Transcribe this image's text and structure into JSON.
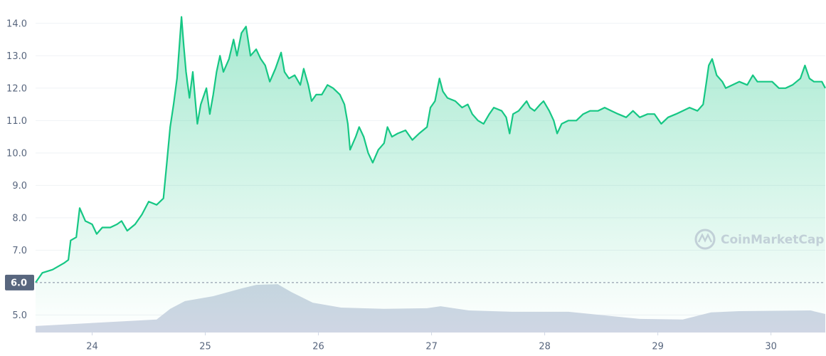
{
  "chart_data": {
    "type": "line",
    "color": "#16c784",
    "x": [
      23.5,
      23.56,
      23.65,
      23.75,
      23.79,
      23.81,
      23.86,
      23.89,
      23.94,
      24.0,
      24.04,
      24.09,
      24.16,
      24.22,
      24.26,
      24.31,
      24.38,
      24.44,
      24.5,
      24.57,
      24.63,
      24.66,
      24.69,
      24.72,
      24.75,
      24.79,
      24.81,
      24.83,
      24.86,
      24.89,
      24.93,
      24.96,
      25.01,
      25.04,
      25.07,
      25.1,
      25.13,
      25.16,
      25.21,
      25.25,
      25.28,
      25.32,
      25.36,
      25.4,
      25.45,
      25.49,
      25.53,
      25.57,
      25.62,
      25.67,
      25.7,
      25.74,
      25.79,
      25.84,
      25.87,
      25.91,
      25.94,
      25.98,
      26.03,
      26.08,
      26.13,
      26.19,
      26.23,
      26.26,
      26.28,
      26.33,
      26.36,
      26.4,
      26.44,
      26.48,
      26.53,
      26.58,
      26.61,
      26.65,
      26.7,
      26.77,
      26.83,
      26.89,
      26.96,
      26.99,
      27.03,
      27.07,
      27.1,
      27.14,
      27.21,
      27.27,
      27.32,
      27.36,
      27.41,
      27.46,
      27.51,
      27.55,
      27.62,
      27.66,
      27.69,
      27.72,
      27.77,
      27.84,
      27.87,
      27.91,
      27.96,
      27.99,
      28.04,
      28.08,
      28.11,
      28.15,
      28.21,
      28.28,
      28.34,
      28.4,
      28.47,
      28.53,
      28.59,
      28.65,
      28.72,
      28.78,
      28.84,
      28.91,
      28.97,
      29.03,
      29.09,
      29.16,
      29.22,
      29.28,
      29.35,
      29.4,
      29.43,
      29.45,
      29.48,
      29.52,
      29.57,
      29.6,
      29.66,
      29.72,
      29.79,
      29.84,
      29.88,
      29.94,
      30.01,
      30.07,
      30.13,
      30.19,
      30.26,
      30.3,
      30.34,
      30.38,
      30.45,
      30.48
    ],
    "values": [
      6.0,
      6.3,
      6.4,
      6.6,
      6.7,
      7.3,
      7.4,
      8.3,
      7.9,
      7.8,
      7.5,
      7.7,
      7.7,
      7.8,
      7.9,
      7.6,
      7.8,
      8.1,
      8.5,
      8.4,
      8.6,
      9.7,
      10.8,
      11.5,
      12.3,
      14.2,
      13.3,
      12.5,
      11.7,
      12.5,
      10.9,
      11.5,
      12.0,
      11.2,
      11.8,
      12.5,
      13.0,
      12.5,
      12.9,
      13.5,
      13.0,
      13.7,
      13.9,
      13.0,
      13.2,
      12.9,
      12.7,
      12.2,
      12.6,
      13.1,
      12.5,
      12.3,
      12.4,
      12.1,
      12.6,
      12.1,
      11.6,
      11.8,
      11.8,
      12.1,
      12.0,
      11.8,
      11.5,
      10.9,
      10.1,
      10.5,
      10.8,
      10.5,
      10.0,
      9.7,
      10.1,
      10.3,
      10.8,
      10.5,
      10.6,
      10.7,
      10.4,
      10.6,
      10.8,
      11.4,
      11.6,
      12.3,
      11.9,
      11.7,
      11.6,
      11.4,
      11.5,
      11.2,
      11.0,
      10.9,
      11.2,
      11.4,
      11.3,
      11.1,
      10.6,
      11.2,
      11.3,
      11.6,
      11.4,
      11.3,
      11.5,
      11.6,
      11.3,
      11.0,
      10.6,
      10.9,
      11.0,
      11.0,
      11.2,
      11.3,
      11.3,
      11.4,
      11.3,
      11.2,
      11.1,
      11.3,
      11.1,
      11.2,
      11.2,
      10.9,
      11.1,
      11.2,
      11.3,
      11.4,
      11.3,
      11.5,
      12.2,
      12.7,
      12.9,
      12.4,
      12.2,
      12.0,
      12.1,
      12.2,
      12.1,
      12.4,
      12.2,
      12.2,
      12.2,
      12.0,
      12.0,
      12.1,
      12.3,
      12.7,
      12.3,
      12.2,
      12.2,
      12.0
    ],
    "volume": {
      "color": "#cfd6e4",
      "x": [
        23.5,
        24.57,
        24.69,
        24.82,
        25.07,
        25.32,
        25.45,
        25.64,
        25.76,
        25.95,
        26.2,
        26.58,
        26.96,
        27.08,
        27.33,
        27.71,
        28.21,
        28.84,
        29.22,
        29.47,
        29.72,
        30.35,
        30.48
      ],
      "values": [
        4.66,
        4.86,
        5.19,
        5.43,
        5.58,
        5.82,
        5.93,
        5.95,
        5.71,
        5.38,
        5.23,
        5.19,
        5.21,
        5.27,
        5.14,
        5.1,
        5.1,
        4.88,
        4.86,
        5.08,
        5.12,
        5.14,
        5.03
      ]
    },
    "xlim": [
      23.5,
      30.48
    ],
    "xticks": [
      24,
      25,
      26,
      27,
      28,
      29,
      30
    ],
    "ylim": [
      4.46,
      14.72
    ],
    "yticks": [
      {
        "value": 5,
        "label": "5.0"
      },
      {
        "value": 6,
        "label": "6.0"
      },
      {
        "value": 7,
        "label": "7.0"
      },
      {
        "value": 8,
        "label": "8.0"
      },
      {
        "value": 9,
        "label": "9.0"
      },
      {
        "value": 10,
        "label": "10.0"
      },
      {
        "value": 11,
        "label": "11.0"
      },
      {
        "value": 12,
        "label": "12.0"
      },
      {
        "value": 13,
        "label": "13.0"
      },
      {
        "value": 14,
        "label": "14.0"
      }
    ],
    "reference_line": 6,
    "grid": true,
    "watermark": "CoinMarketCap"
  }
}
